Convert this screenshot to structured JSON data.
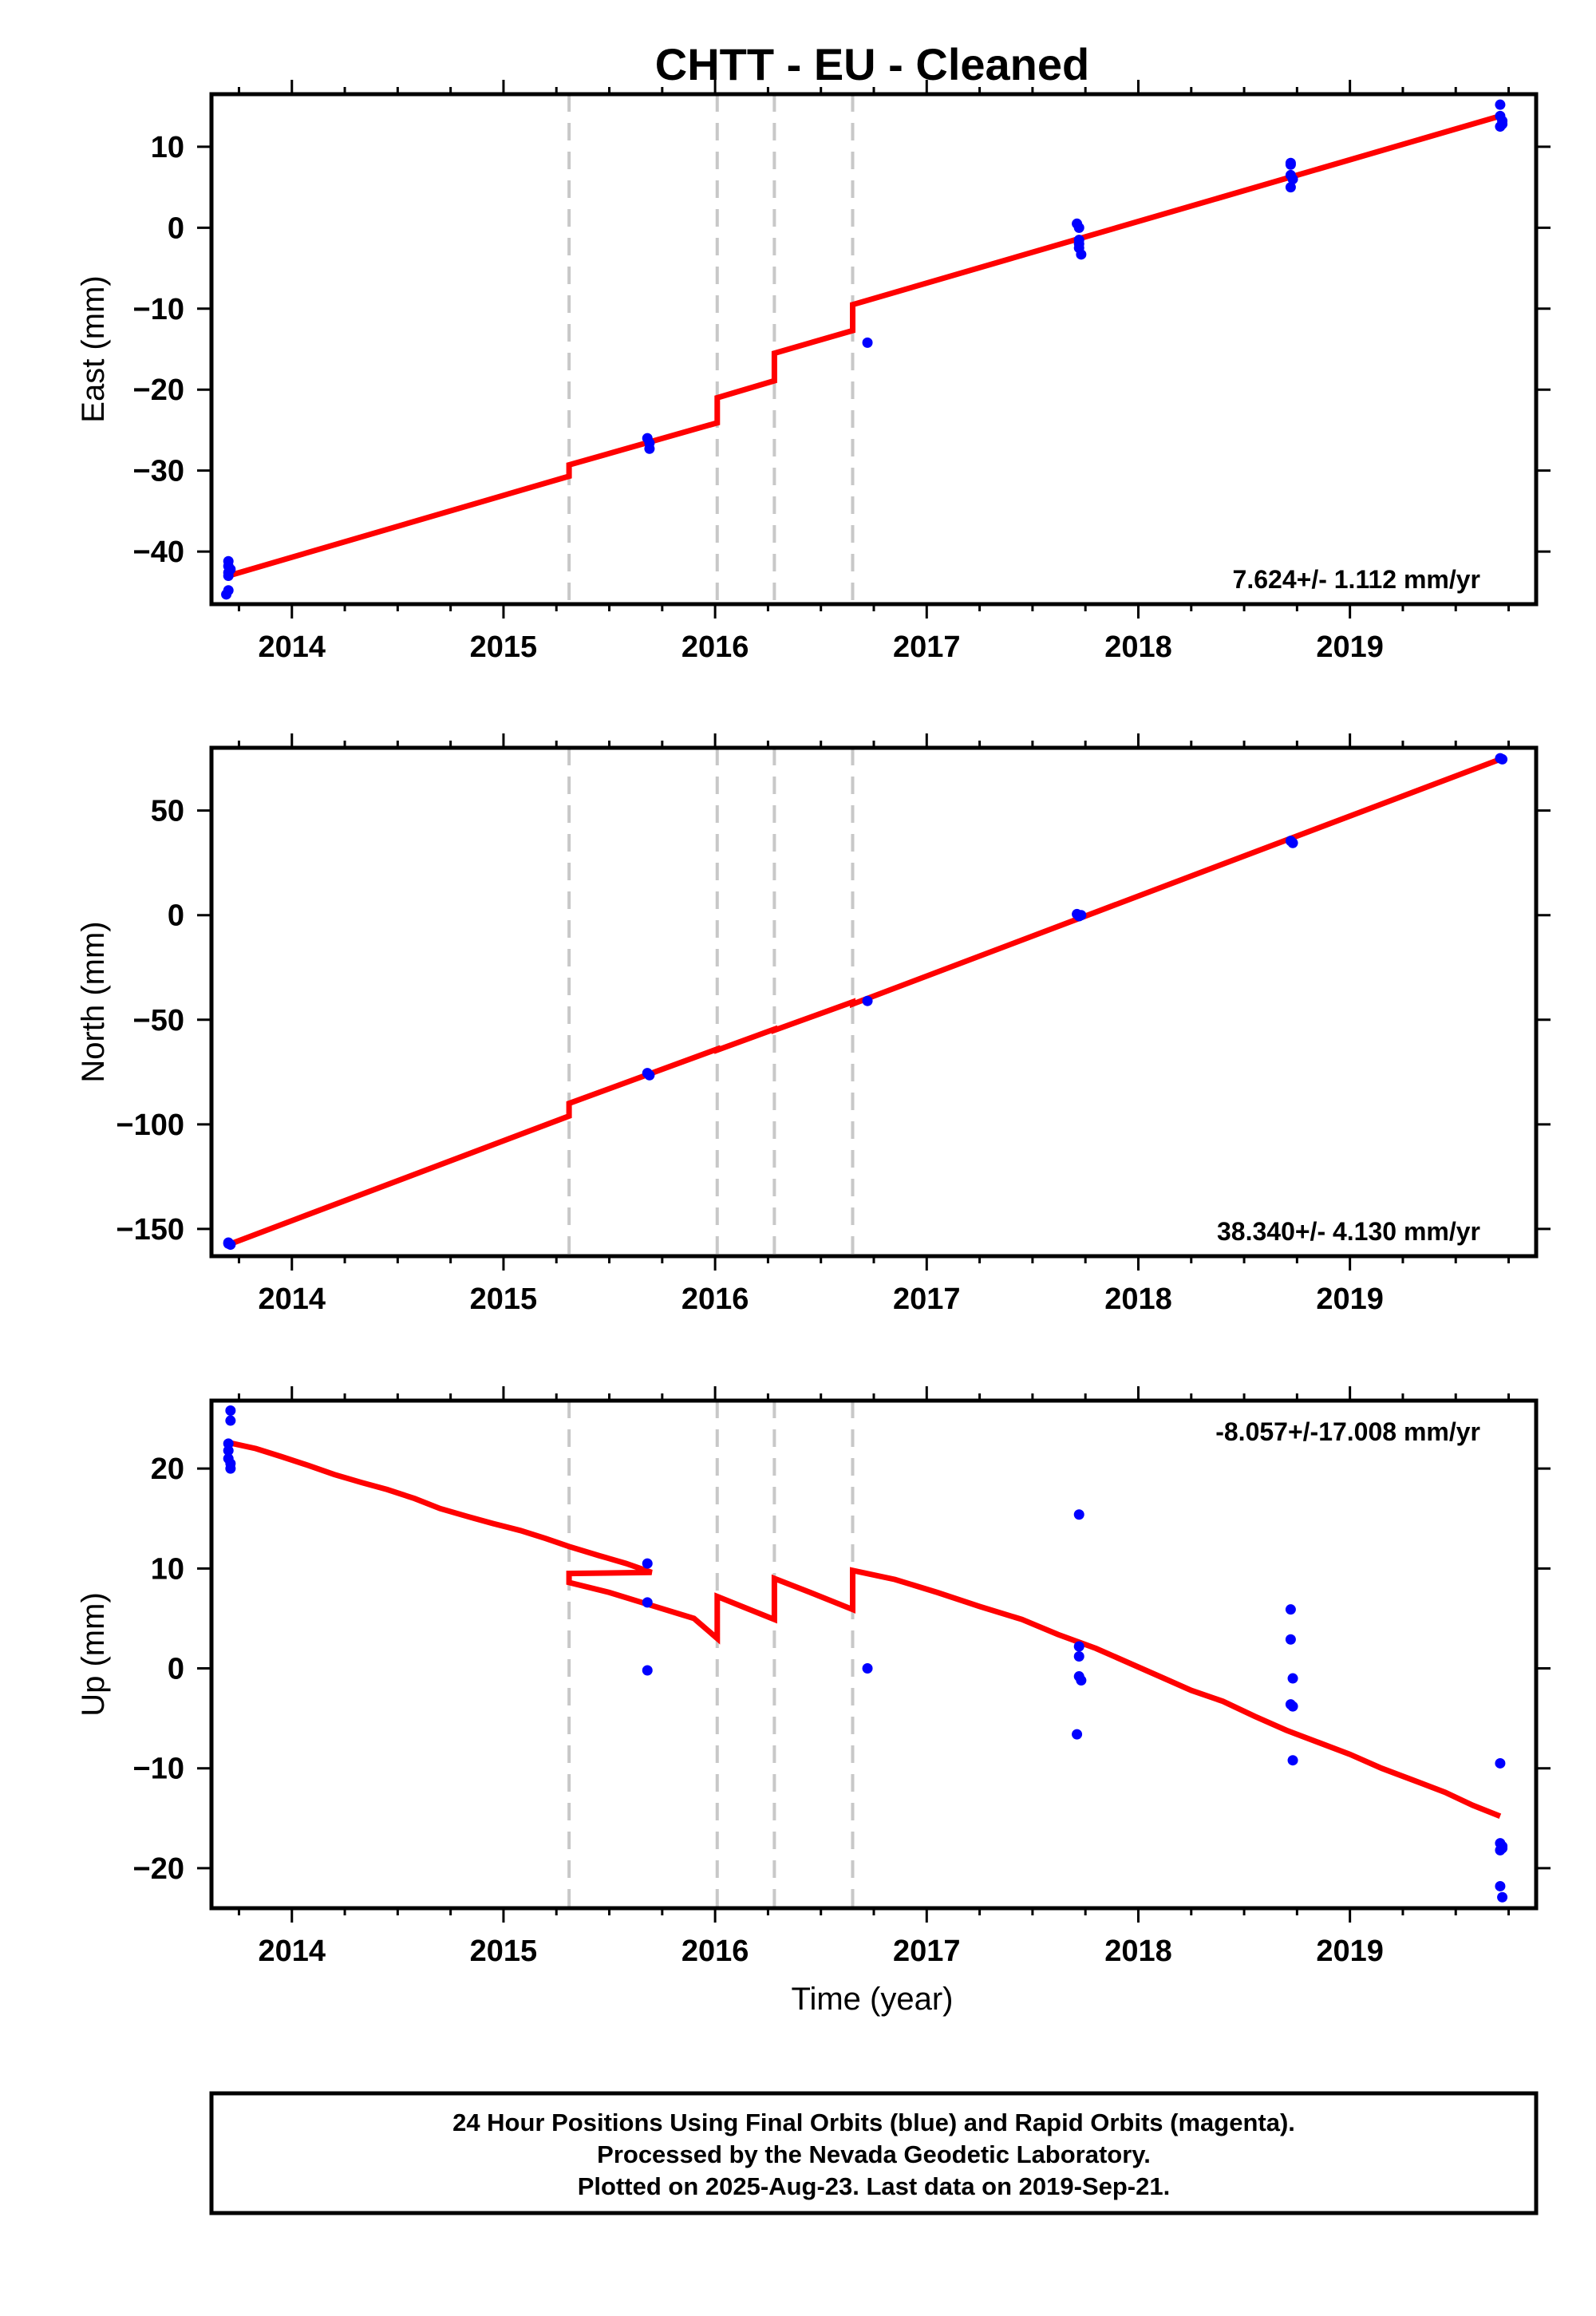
{
  "title": "CHTT  - EU - Cleaned",
  "colors": {
    "final_orbits": "#0000ff",
    "model": "#ff0000",
    "offset_line": "#c8c8c8",
    "axis": "#000000"
  },
  "chart_data": [
    {
      "type": "scatter",
      "component": "east",
      "ylabel": "East (mm)",
      "xlim": [
        2013.62,
        2019.88
      ],
      "ylim": [
        -46.5,
        16.5
      ],
      "yticks": [
        -40,
        -30,
        -20,
        -10,
        0,
        10
      ],
      "xticks": [
        2014,
        2015,
        2016,
        2017,
        2018,
        2019
      ],
      "rate_label": "7.624+/- 1.112 mm/yr",
      "rate_position": "bottom-right",
      "offsets": [
        2015.31,
        2016.01,
        2016.28,
        2016.65
      ],
      "points": [
        [
          2013.7,
          -41.2
        ],
        [
          2013.7,
          -41.8
        ],
        [
          2013.7,
          -42.6
        ],
        [
          2013.7,
          -43.0
        ],
        [
          2013.7,
          -44.8
        ],
        [
          2013.69,
          -45.3
        ],
        [
          2013.71,
          -42.2
        ],
        [
          2015.68,
          -26.0
        ],
        [
          2015.69,
          -26.6
        ],
        [
          2015.69,
          -27.3
        ],
        [
          2016.72,
          -14.2
        ],
        [
          2017.71,
          0.5
        ],
        [
          2017.72,
          0.0
        ],
        [
          2017.72,
          -1.5
        ],
        [
          2017.72,
          -2.5
        ],
        [
          2017.73,
          -3.3
        ],
        [
          2017.72,
          -2.0
        ],
        [
          2018.72,
          7.8
        ],
        [
          2018.72,
          8.0
        ],
        [
          2018.72,
          6.5
        ],
        [
          2018.73,
          6.0
        ],
        [
          2018.72,
          5.0
        ],
        [
          2019.71,
          15.2
        ],
        [
          2019.71,
          13.8
        ],
        [
          2019.72,
          13.2
        ],
        [
          2019.71,
          12.5
        ],
        [
          2019.72,
          12.8
        ]
      ],
      "model": [
        [
          2013.7,
          -43.0
        ],
        [
          2015.31,
          -30.7
        ],
        [
          2015.31,
          -29.3
        ],
        [
          2016.01,
          -24.1
        ],
        [
          2016.01,
          -21.0
        ],
        [
          2016.28,
          -18.9
        ],
        [
          2016.28,
          -15.5
        ],
        [
          2016.65,
          -12.7
        ],
        [
          2016.65,
          -9.5
        ],
        [
          2019.71,
          13.8
        ]
      ]
    },
    {
      "type": "scatter",
      "component": "north",
      "ylabel": "North (mm)",
      "xlim": [
        2013.62,
        2019.88
      ],
      "ylim": [
        -163,
        80
      ],
      "yticks": [
        -150,
        -100,
        -50,
        0,
        50
      ],
      "xticks": [
        2014,
        2015,
        2016,
        2017,
        2018,
        2019
      ],
      "rate_label": "38.340+/- 4.130 mm/yr",
      "rate_position": "bottom-right",
      "offsets": [
        2015.31,
        2016.01,
        2016.28,
        2016.65
      ],
      "points": [
        [
          2013.7,
          -157.0
        ],
        [
          2013.71,
          -157.5
        ],
        [
          2013.7,
          -156.5
        ],
        [
          2015.68,
          -75.5
        ],
        [
          2015.69,
          -76.5
        ],
        [
          2016.72,
          -41.0
        ],
        [
          2017.71,
          0.5
        ],
        [
          2017.72,
          -0.5
        ],
        [
          2017.73,
          0.0
        ],
        [
          2018.72,
          35.5
        ],
        [
          2018.73,
          34.5
        ],
        [
          2019.71,
          75.0
        ],
        [
          2019.72,
          74.5
        ]
      ],
      "model": [
        [
          2013.7,
          -157.5
        ],
        [
          2015.31,
          -96.0
        ],
        [
          2015.31,
          -90.0
        ],
        [
          2016.01,
          -64.0
        ],
        [
          2016.01,
          -64.5
        ],
        [
          2016.28,
          -54.5
        ],
        [
          2016.28,
          -55.0
        ],
        [
          2016.65,
          -41.5
        ],
        [
          2016.65,
          -42.5
        ],
        [
          2019.71,
          74.5
        ]
      ]
    },
    {
      "type": "scatter",
      "component": "up",
      "ylabel": "Up (mm)",
      "xlabel": "Time (year)",
      "xlim": [
        2013.62,
        2019.88
      ],
      "ylim": [
        -24,
        26.8
      ],
      "yticks": [
        -20,
        -10,
        0,
        10,
        20
      ],
      "xticks": [
        2014,
        2015,
        2016,
        2017,
        2018,
        2019
      ],
      "rate_label": "-8.057+/-17.008 mm/yr",
      "rate_position": "top-right",
      "offsets": [
        2015.31,
        2016.01,
        2016.28,
        2016.65
      ],
      "points": [
        [
          2013.71,
          25.8
        ],
        [
          2013.71,
          24.8
        ],
        [
          2013.7,
          22.5
        ],
        [
          2013.7,
          21.8
        ],
        [
          2013.7,
          21.0
        ],
        [
          2013.71,
          20.5
        ],
        [
          2013.71,
          20.0
        ],
        [
          2015.68,
          10.5
        ],
        [
          2015.68,
          6.6
        ],
        [
          2015.68,
          -0.2
        ],
        [
          2016.72,
          0.0
        ],
        [
          2017.72,
          15.4
        ],
        [
          2017.72,
          2.2
        ],
        [
          2017.72,
          1.2
        ],
        [
          2017.72,
          -0.8
        ],
        [
          2017.73,
          -1.2
        ],
        [
          2017.71,
          -6.6
        ],
        [
          2018.72,
          5.9
        ],
        [
          2018.72,
          2.9
        ],
        [
          2018.73,
          -1.0
        ],
        [
          2018.72,
          -3.6
        ],
        [
          2018.73,
          -3.8
        ],
        [
          2018.73,
          -9.2
        ],
        [
          2019.71,
          -9.5
        ],
        [
          2019.71,
          -17.5
        ],
        [
          2019.72,
          -17.8
        ],
        [
          2019.71,
          -18.2
        ],
        [
          2019.72,
          -18.0
        ],
        [
          2019.71,
          -21.8
        ],
        [
          2019.72,
          -22.9
        ]
      ],
      "model": [
        [
          2013.7,
          22.6
        ],
        [
          2013.83,
          22.0
        ],
        [
          2013.95,
          21.2
        ],
        [
          2014.08,
          20.3
        ],
        [
          2014.2,
          19.4
        ],
        [
          2014.33,
          18.6
        ],
        [
          2014.45,
          17.9
        ],
        [
          2014.58,
          17.0
        ],
        [
          2014.7,
          16.0
        ],
        [
          2014.83,
          15.2
        ],
        [
          2014.95,
          14.5
        ],
        [
          2015.08,
          13.8
        ],
        [
          2015.2,
          13.0
        ],
        [
          2015.31,
          12.2
        ],
        [
          2015.45,
          11.3
        ],
        [
          2015.58,
          10.5
        ],
        [
          2015.7,
          9.6
        ],
        [
          2015.31,
          9.5
        ],
        [
          2015.31,
          8.6
        ],
        [
          2015.5,
          7.6
        ],
        [
          2015.7,
          6.3
        ],
        [
          2015.9,
          5.0
        ],
        [
          2016.01,
          3.0
        ],
        [
          2016.01,
          7.2
        ],
        [
          2016.15,
          6.0
        ],
        [
          2016.28,
          4.9
        ],
        [
          2016.28,
          9.0
        ],
        [
          2016.45,
          7.6
        ],
        [
          2016.65,
          5.9
        ],
        [
          2016.65,
          9.8
        ],
        [
          2016.85,
          8.9
        ],
        [
          2017.05,
          7.6
        ],
        [
          2017.25,
          6.2
        ],
        [
          2017.45,
          4.9
        ],
        [
          2017.62,
          3.4
        ],
        [
          2017.8,
          2.0
        ],
        [
          2017.95,
          0.6
        ],
        [
          2018.1,
          -0.8
        ],
        [
          2018.25,
          -2.2
        ],
        [
          2018.4,
          -3.3
        ],
        [
          2018.55,
          -4.8
        ],
        [
          2018.7,
          -6.2
        ],
        [
          2018.85,
          -7.4
        ],
        [
          2019.0,
          -8.6
        ],
        [
          2019.15,
          -10.0
        ],
        [
          2019.3,
          -11.2
        ],
        [
          2019.45,
          -12.4
        ],
        [
          2019.58,
          -13.7
        ],
        [
          2019.71,
          -14.8
        ]
      ]
    }
  ],
  "footer": {
    "line1": "24 Hour Positions Using Final Orbits (blue) and Rapid Orbits (magenta).",
    "line2": "Processed by the Nevada Geodetic Laboratory.",
    "line3": "Plotted on 2025-Aug-23. Last data on 2019-Sep-21."
  }
}
